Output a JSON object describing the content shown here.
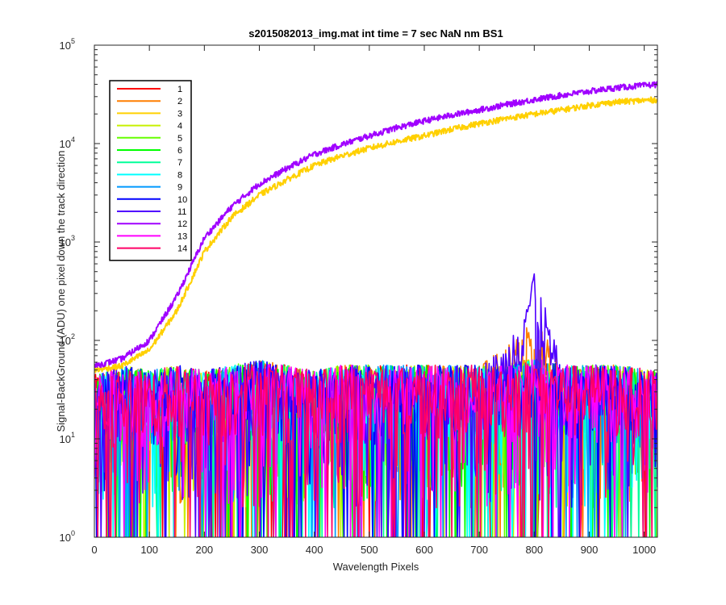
{
  "chart_data": {
    "type": "line",
    "title": "s2015082013_img.mat int time = 7 sec  NaN nm BS1",
    "xlabel": "Wavelength Pixels",
    "ylabel": "Signal-BackGround (ADU) one pixel down the track direction",
    "xlim": [
      0,
      1024
    ],
    "ylim": [
      1,
      100000
    ],
    "yscale": "log",
    "x_ticks": [
      "0",
      "100",
      "200",
      "300",
      "400",
      "500",
      "600",
      "700",
      "800",
      "900",
      "1000"
    ],
    "y_ticks": [
      {
        "base": "10",
        "exp": "0"
      },
      {
        "base": "10",
        "exp": "1"
      },
      {
        "base": "10",
        "exp": "2"
      },
      {
        "base": "10",
        "exp": "3"
      },
      {
        "base": "10",
        "exp": "4"
      },
      {
        "base": "10",
        "exp": "5"
      }
    ],
    "grid": false,
    "legend_position": "top-left",
    "x_sample": [
      0,
      50,
      100,
      150,
      200,
      250,
      300,
      350,
      400,
      450,
      500,
      550,
      600,
      650,
      700,
      750,
      800,
      850,
      900,
      950,
      1024
    ],
    "series": [
      {
        "name": "1",
        "color": "#ff0000",
        "noise_level": 25,
        "values": [
          20,
          25,
          20,
          25,
          22,
          25,
          28,
          25,
          22,
          25,
          25,
          25,
          25,
          25,
          25,
          25,
          30,
          25,
          25,
          25,
          22
        ]
      },
      {
        "name": "2",
        "color": "#ff7f00",
        "noise_level": 25,
        "values": [
          20,
          25,
          22,
          25,
          22,
          25,
          28,
          25,
          22,
          25,
          25,
          25,
          25,
          25,
          25,
          40,
          80,
          25,
          25,
          25,
          22
        ]
      },
      {
        "name": "3",
        "color": "#ffd000",
        "noise_level": 0,
        "values": [
          50,
          55,
          80,
          200,
          800,
          1800,
          3000,
          4300,
          6000,
          7500,
          9000,
          10500,
          12000,
          14000,
          16000,
          18000,
          20000,
          22000,
          24500,
          26500,
          28000
        ]
      },
      {
        "name": "4",
        "color": "#c8f000",
        "noise_level": 25,
        "values": [
          20,
          25,
          22,
          25,
          22,
          25,
          28,
          25,
          22,
          25,
          25,
          25,
          25,
          25,
          25,
          25,
          30,
          25,
          25,
          25,
          22
        ]
      },
      {
        "name": "5",
        "color": "#66ff00",
        "noise_level": 25,
        "values": [
          20,
          25,
          22,
          25,
          22,
          25,
          28,
          25,
          22,
          25,
          25,
          25,
          25,
          25,
          25,
          25,
          30,
          25,
          25,
          25,
          22
        ]
      },
      {
        "name": "6",
        "color": "#00ff00",
        "noise_level": 25,
        "values": [
          20,
          25,
          22,
          25,
          22,
          25,
          28,
          25,
          22,
          25,
          25,
          25,
          25,
          25,
          25,
          25,
          30,
          25,
          25,
          25,
          22
        ]
      },
      {
        "name": "7",
        "color": "#00ff99",
        "noise_level": 25,
        "values": [
          20,
          25,
          22,
          25,
          22,
          25,
          28,
          25,
          22,
          25,
          25,
          25,
          25,
          25,
          25,
          25,
          30,
          25,
          25,
          25,
          22
        ]
      },
      {
        "name": "8",
        "color": "#00ffff",
        "noise_level": 25,
        "values": [
          20,
          25,
          22,
          25,
          22,
          25,
          28,
          25,
          22,
          25,
          25,
          25,
          25,
          25,
          25,
          25,
          30,
          25,
          25,
          25,
          22
        ]
      },
      {
        "name": "9",
        "color": "#0099ff",
        "noise_level": 25,
        "values": [
          20,
          25,
          22,
          25,
          22,
          25,
          28,
          25,
          22,
          25,
          25,
          25,
          25,
          25,
          25,
          25,
          30,
          25,
          25,
          25,
          22
        ]
      },
      {
        "name": "10",
        "color": "#0000ff",
        "noise_level": 25,
        "values": [
          20,
          25,
          22,
          25,
          22,
          25,
          28,
          25,
          22,
          25,
          25,
          25,
          25,
          25,
          25,
          25,
          30,
          25,
          25,
          25,
          22
        ]
      },
      {
        "name": "11",
        "color": "#5000ff",
        "noise_level": 25,
        "values": [
          20,
          25,
          22,
          25,
          22,
          25,
          28,
          25,
          22,
          25,
          25,
          25,
          25,
          25,
          25,
          40,
          250,
          25,
          25,
          25,
          22
        ]
      },
      {
        "name": "12",
        "color": "#a000ff",
        "noise_level": 0,
        "values": [
          55,
          65,
          100,
          280,
          1100,
          2300,
          3900,
          5600,
          7800,
          9800,
          12000,
          14500,
          17000,
          19500,
          22000,
          25000,
          28000,
          31000,
          34000,
          37000,
          40000
        ]
      },
      {
        "name": "13",
        "color": "#ff00ff",
        "noise_level": 25,
        "values": [
          20,
          25,
          22,
          25,
          22,
          25,
          28,
          25,
          22,
          25,
          25,
          25,
          25,
          25,
          25,
          25,
          30,
          25,
          25,
          25,
          22
        ]
      },
      {
        "name": "14",
        "color": "#ff0066",
        "noise_level": 25,
        "values": [
          20,
          25,
          22,
          25,
          22,
          25,
          28,
          25,
          22,
          25,
          25,
          25,
          25,
          25,
          25,
          25,
          30,
          25,
          25,
          25,
          22
        ]
      }
    ]
  }
}
